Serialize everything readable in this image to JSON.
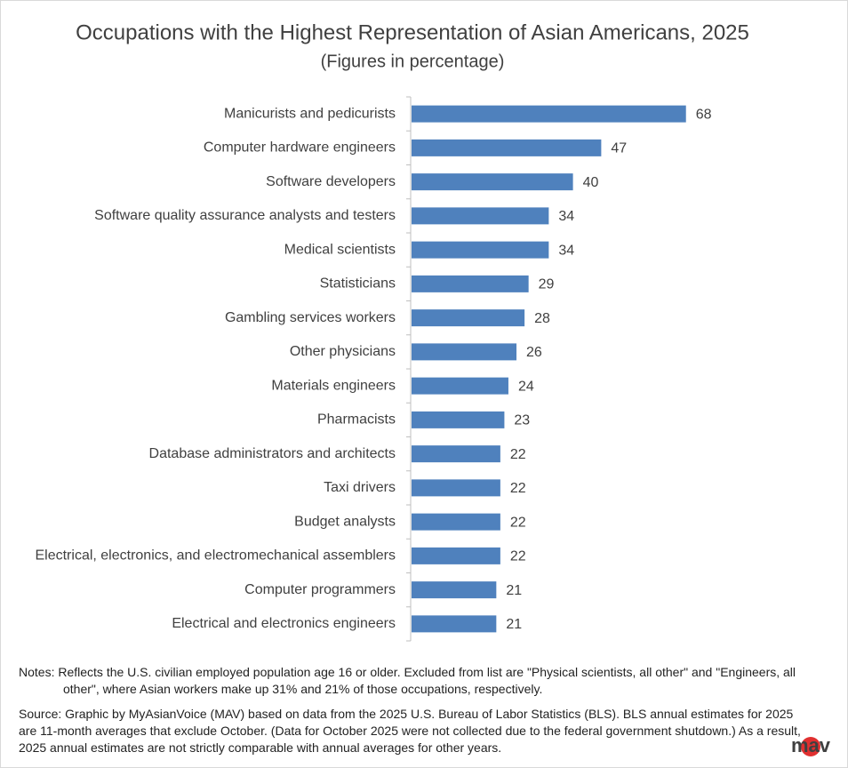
{
  "chart_data": {
    "type": "bar",
    "orientation": "horizontal",
    "title": "Occupations with the Highest Representation  of Asian Americans, 2025",
    "subtitle": "(Figures in percentage)",
    "categories": [
      "Manicurists and pedicurists",
      "Computer hardware engineers",
      "Software developers",
      "Software quality assurance analysts and testers",
      "Medical scientists",
      "Statisticians",
      "Gambling services workers",
      "Other physicians",
      "Materials engineers",
      "Pharmacists",
      "Database administrators and architects",
      "Taxi drivers",
      "Budget analysts",
      "Electrical, electronics, and electromechanical assemblers",
      "Computer programmers",
      "Electrical and electronics engineers"
    ],
    "values": [
      68,
      47,
      40,
      34,
      34,
      29,
      28,
      26,
      24,
      23,
      22,
      22,
      22,
      22,
      21,
      21
    ],
    "color": "#4f81bd"
  },
  "notes": "Notes:  Reflects the U.S. civilian employed population age 16 or older.  Excluded from list are \"Physical scientists, all other\" and \"Engineers, all other\", where Asian workers make up 31% and 21% of those occupations, respectively.",
  "source": "Source: Graphic by MyAsianVoice (MAV) based on data from the 2025 U.S. Bureau of Labor Statistics (BLS). BLS annual estimates for 2025 are 11-month averages that exclude October. (Data for October 2025 were not collected due to the federal  government shutdown.) As a result, 2025 annual estimates are not strictly comparable with annual averages for other years.",
  "logo": "mav"
}
